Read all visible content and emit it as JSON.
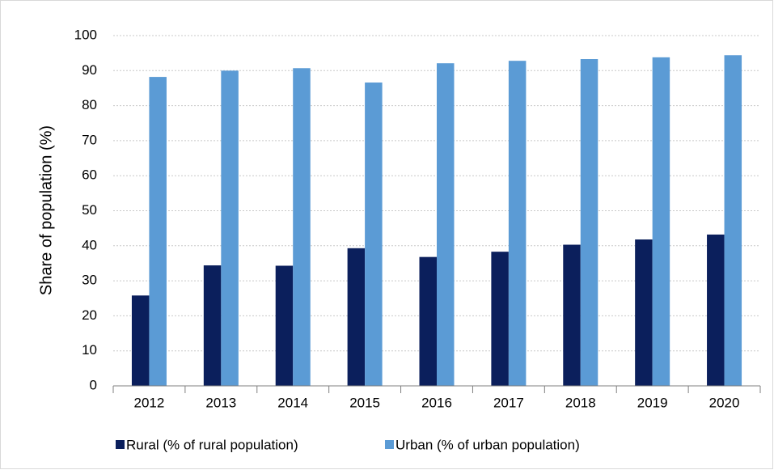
{
  "chart_data": {
    "type": "bar",
    "y_label": "Share of population (%)",
    "categories": [
      "2012",
      "2013",
      "2014",
      "2015",
      "2016",
      "2017",
      "2018",
      "2019",
      "2020"
    ],
    "series": [
      {
        "name": "Rural (% of rural population)",
        "color": "#0b1f5c",
        "values": [
          25.8,
          34.4,
          34.3,
          39.3,
          36.8,
          38.3,
          40.3,
          41.8,
          43.2
        ]
      },
      {
        "name": "Urban (% of urban population)",
        "color": "#5b9bd5",
        "values": [
          88.2,
          90.0,
          90.7,
          86.6,
          92.1,
          92.8,
          93.3,
          93.8,
          94.4
        ]
      }
    ],
    "ylim": [
      0,
      100
    ],
    "yticks": [
      0,
      10,
      20,
      30,
      40,
      50,
      60,
      70,
      80,
      90,
      100
    ],
    "grid": true,
    "legend": "bottom"
  }
}
